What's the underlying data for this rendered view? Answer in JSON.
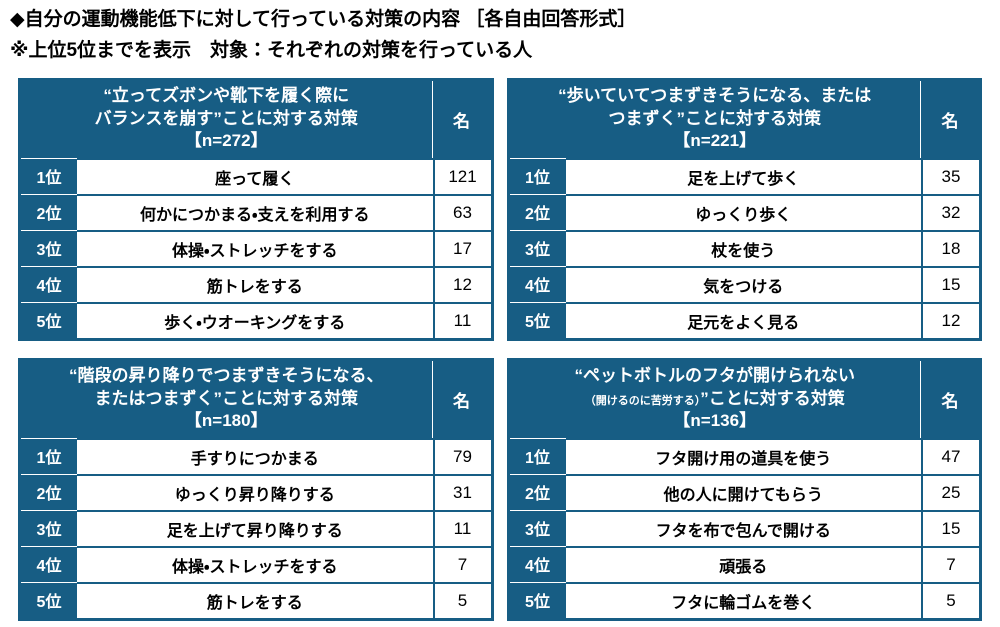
{
  "page": {
    "title": "◆自分の運動機能低下に対して行っている対策の内容 ［各自由回答形式］",
    "subtitle": "※上位5位までを表示　対象：それぞれの対策を行っている人"
  },
  "colors": {
    "navy": "#175D84",
    "text": "#000000",
    "background": "#FFFFFF"
  },
  "chart_data": [
    {
      "type": "table",
      "header_line1": "“立ってズボンや靴下を履く際に",
      "header_line2": "バランスを崩す”ことに対する対策",
      "n_label": "【n=272】",
      "n": 272,
      "unit": "名",
      "rank_labels": [
        "1位",
        "2位",
        "3位",
        "4位",
        "5位"
      ],
      "items": [
        "座って履く",
        "何かにつかまる・支えを利用する",
        "体操・ストレッチをする",
        "筋トレをする",
        "歩く・ウオーキングをする"
      ],
      "values": [
        121,
        63,
        17,
        12,
        11
      ]
    },
    {
      "type": "table",
      "header_line1": "“歩いていてつまずきそうになる、または",
      "header_line2": "つまずく”ことに対する対策",
      "n_label": "【n=221】",
      "n": 221,
      "unit": "名",
      "rank_labels": [
        "1位",
        "2位",
        "3位",
        "4位",
        "5位"
      ],
      "items": [
        "足を上げて歩く",
        "ゆっくり歩く",
        "杖を使う",
        "気をつける",
        "足元をよく見る"
      ],
      "values": [
        35,
        32,
        18,
        15,
        12
      ]
    },
    {
      "type": "table",
      "header_line1": "“階段の昇り降りでつまずきそうになる、",
      "header_line2": "またはつまずく”ことに対する対策",
      "n_label": "【n=180】",
      "n": 180,
      "unit": "名",
      "rank_labels": [
        "1位",
        "2位",
        "3位",
        "4位",
        "5位"
      ],
      "items": [
        "手すりにつかまる",
        "ゆっくり昇り降りする",
        "足を上げて昇り降りする",
        "体操・ストレッチをする",
        "筋トレをする"
      ],
      "values": [
        79,
        31,
        11,
        7,
        5
      ]
    },
    {
      "type": "table",
      "header_line1": "“ペットボトルのフタが開けられない",
      "header_line2_small": "（開けるのに苦労する）",
      "header_line2_rest": "”ことに対する対策",
      "n_label": "【n=136】",
      "n": 136,
      "unit": "名",
      "rank_labels": [
        "1位",
        "2位",
        "3位",
        "4位",
        "5位"
      ],
      "items": [
        "フタ開け用の道具を使う",
        "他の人に開けてもらう",
        "フタを布で包んで開ける",
        "頑張る",
        "フタに輪ゴムを巻く"
      ],
      "values": [
        47,
        25,
        15,
        7,
        5
      ]
    }
  ]
}
